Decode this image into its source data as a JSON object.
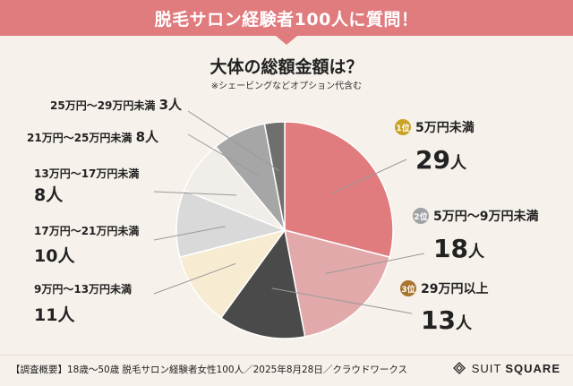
{
  "header": {
    "title": "脱毛サロン経験者100人に質問！",
    "question": "大体の総額金額は？",
    "note": "※シェービングなどオプション代含む"
  },
  "chart_data": {
    "type": "pie",
    "total": 100,
    "unit": "人",
    "slices": [
      {
        "label": "5万円未満",
        "count": "29",
        "rank": "1位",
        "value": 29,
        "color": "#e07b7e",
        "rank_color": "#c9a227"
      },
      {
        "label": "5万円～9万円未満",
        "count": "18",
        "rank": "2位",
        "value": 18,
        "color": "#e2a9ab",
        "rank_color": "#9fa3a6"
      },
      {
        "label": "9万円～13万円未満",
        "count": "11",
        "rank": "",
        "value": 11,
        "color": "#f7ecd2"
      },
      {
        "label": "13万円～17万円未満",
        "count": "8",
        "rank": "",
        "value": 8,
        "color": "#f1ede8"
      },
      {
        "label": "17万円～21万円未満",
        "count": "10",
        "rank": "",
        "value": 10,
        "color": "#d9d9d9"
      },
      {
        "label": "21万円～25万円未満",
        "count": "8",
        "rank": "",
        "value": 8,
        "color": "#a6a6a6"
      },
      {
        "label": "25万円～29万円未満",
        "count": "3",
        "rank": "",
        "value": 3,
        "color": "#6f6f6f"
      },
      {
        "label": "29万円以上",
        "count": "13",
        "rank": "3位",
        "value": 13,
        "color": "#4a4a4a",
        "rank_color": "#a9742e"
      }
    ]
  },
  "footer": {
    "source": "【調査概要】18歳～50歳 脱毛サロン経験者女性100人／2025年8月28日／クラウドワークス",
    "brand_light": "SUIT",
    "brand_bold": "SQUARE"
  }
}
